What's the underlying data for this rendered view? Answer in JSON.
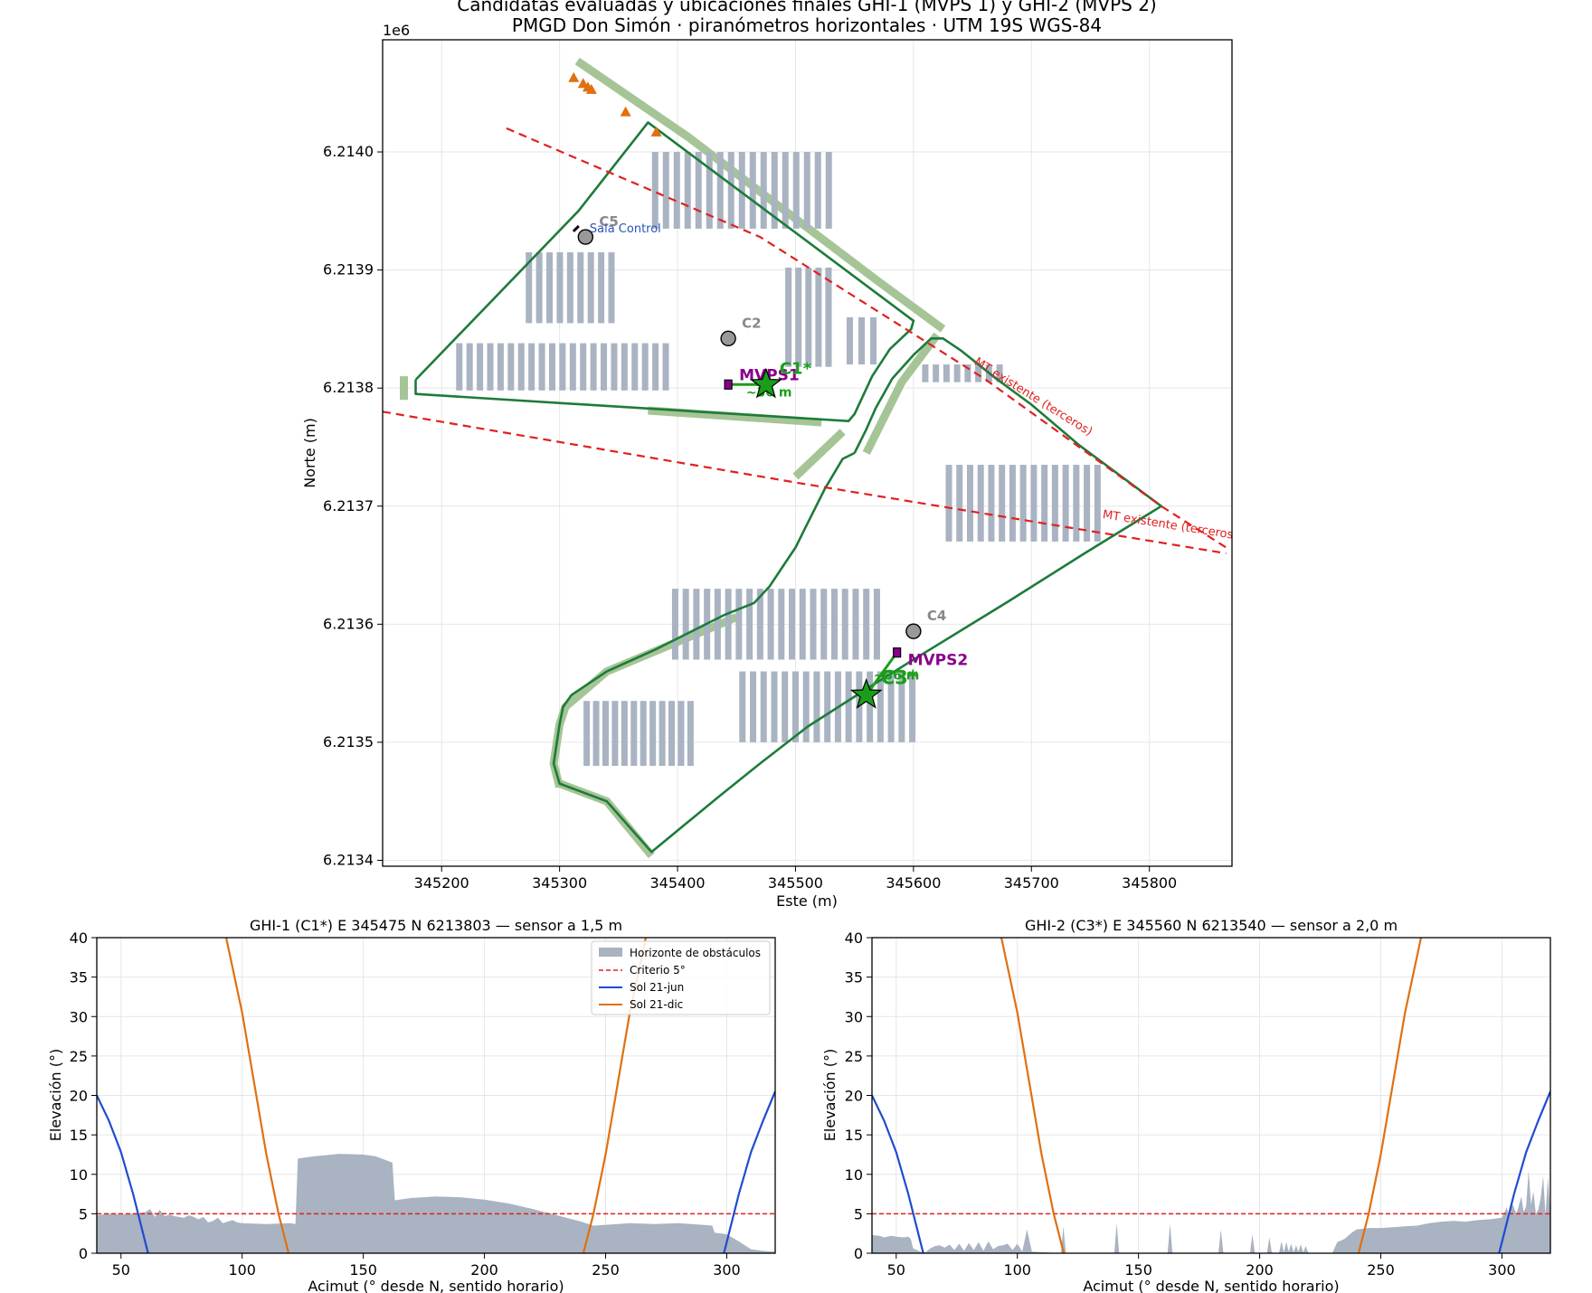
{
  "figure": {
    "title_line1": "Candidatas evaluadas y ubicaciones finales GHI-1 (MVPS 1) y GHI-2 (MVPS 2)",
    "title_line2": "PMGD Don Simón · piranómetros horizontales · UTM 19S WGS-84"
  },
  "chart_data": [
    {
      "type": "map",
      "xlabel": "Este (m)",
      "ylabel": "Norte (m)",
      "y_offset_label": "1e6",
      "xlim": [
        345150,
        345870
      ],
      "ylim": [
        6213395,
        6214095
      ],
      "xticks": [
        345200,
        345300,
        345400,
        345500,
        345600,
        345700,
        345800
      ],
      "yticks": [
        6213400,
        6213500,
        6213600,
        6213700,
        6213800,
        6213900,
        6214000
      ],
      "ytick_labels": [
        "6.2134",
        "6.2135",
        "6.2136",
        "6.2137",
        "6.2138",
        "6.2139",
        "6.2140"
      ],
      "grid": true,
      "colors": {
        "boundary": "#1e7b3a",
        "setback": "#9cbf8c",
        "pv_rows": "#a9b3c1",
        "mt_line": "#e02020",
        "candidate": "#999999",
        "selected": "#1a9e1a",
        "mvps": "#8b008b",
        "trees": "#e07010",
        "sala": "#2a52be"
      },
      "boundary_north": [
        [
          345178,
          6213807
        ],
        [
          345178,
          6213795
        ],
        [
          345545,
          6213772
        ],
        [
          345550,
          6213778
        ],
        [
          345565,
          6213810
        ],
        [
          345580,
          6213833
        ],
        [
          345598,
          6213850
        ],
        [
          345600,
          6213857
        ],
        [
          345375,
          6214025
        ],
        [
          345316,
          6213950
        ],
        [
          345178,
          6213807
        ]
      ],
      "boundary_south": [
        [
          345550,
          6213745
        ],
        [
          345560,
          6213765
        ],
        [
          345568,
          6213783
        ],
        [
          345582,
          6213808
        ],
        [
          345600,
          6213828
        ],
        [
          345615,
          6213842
        ],
        [
          345625,
          6213842
        ],
        [
          345640,
          6213832
        ],
        [
          345670,
          6213808
        ],
        [
          345700,
          6213786
        ],
        [
          345740,
          6213752
        ],
        [
          345810,
          6213700
        ],
        [
          345745,
          6213660
        ],
        [
          345680,
          6213619
        ],
        [
          345600,
          6213570
        ],
        [
          345560,
          6213545
        ],
        [
          345510,
          6213513
        ],
        [
          345470,
          6213482
        ],
        [
          345435,
          6213454
        ],
        [
          345378,
          6213407
        ],
        [
          345340,
          6213450
        ],
        [
          345300,
          6213465
        ],
        [
          345295,
          6213482
        ],
        [
          345300,
          6213515
        ],
        [
          345303,
          6213530
        ],
        [
          345310,
          6213540
        ],
        [
          345340,
          6213560
        ],
        [
          345380,
          6213578
        ],
        [
          345440,
          6213608
        ],
        [
          345465,
          6213618
        ],
        [
          345478,
          6213632
        ],
        [
          345490,
          6213650
        ],
        [
          345500,
          6213665
        ],
        [
          345510,
          6213685
        ],
        [
          345525,
          6213715
        ],
        [
          345540,
          6213740
        ],
        [
          345550,
          6213745
        ]
      ],
      "setback_strips": [
        [
          [
            345315,
            6214077
          ],
          [
            345410,
            6214012
          ],
          [
            345498,
            6213945
          ],
          [
            345568,
            6213892
          ],
          [
            345625,
            6213850
          ]
        ],
        [
          [
            345168,
            6213810
          ],
          [
            345168,
            6213790
          ]
        ],
        [
          [
            345375,
            6213781
          ],
          [
            345522,
            6213771
          ]
        ],
        [
          [
            345500,
            6213725
          ],
          [
            345540,
            6213763
          ]
        ],
        [
          [
            345560,
            6213745
          ],
          [
            345575,
            6213775
          ],
          [
            345590,
            6213805
          ],
          [
            345620,
            6213845
          ]
        ],
        [
          [
            345300,
            6213462
          ],
          [
            345295,
            6213482
          ],
          [
            345300,
            6213515
          ],
          [
            345305,
            6213530
          ],
          [
            345340,
            6213560
          ],
          [
            345400,
            6213585
          ],
          [
            345450,
            6213606
          ]
        ],
        [
          [
            345300,
            6213465
          ],
          [
            345340,
            6213450
          ],
          [
            345378,
            6213404
          ]
        ]
      ],
      "pv_rows": [
        {
          "x_start": 345215,
          "x_end": 345390,
          "step": 8.75,
          "y1": 6213798,
          "y2": 6213838
        },
        {
          "x_start": 345274,
          "x_end": 345344,
          "step": 8.75,
          "y1": 6213855,
          "y2": 6213915
        },
        {
          "x_start": 345381,
          "x_end": 345537,
          "step": 9.2,
          "y1": 6213935,
          "y2": 6214000
        },
        {
          "x_start": 345494,
          "x_end": 345536,
          "step": 8.5,
          "y1": 6213818,
          "y2": 6213902
        },
        {
          "x_start": 345546,
          "x_end": 345566,
          "step": 10,
          "y1": 6213820,
          "y2": 6213860
        },
        {
          "x_start": 345610,
          "x_end": 345675,
          "step": 9,
          "y1": 6213805,
          "y2": 6213820
        },
        {
          "x_start": 345630,
          "x_end": 345760,
          "step": 9,
          "y1": 6213670,
          "y2": 6213735
        },
        {
          "x_start": 345398,
          "x_end": 345570,
          "step": 9,
          "y1": 6213570,
          "y2": 6213630
        },
        {
          "x_start": 345455,
          "x_end": 345605,
          "step": 9,
          "y1": 6213500,
          "y2": 6213560
        },
        {
          "x_start": 345323,
          "x_end": 345415,
          "step": 8,
          "y1": 6213480,
          "y2": 6213535
        }
      ],
      "mt_lines": [
        {
          "points": [
            [
              345255,
              6214020
            ],
            [
              345470,
              6213928
            ],
            [
              345660,
              6213808
            ],
            [
              345810,
              6213700
            ],
            [
              345865,
              6213665
            ]
          ],
          "label": "MT existente (terceros)",
          "label_at": [
            345700,
            6213790
          ]
        },
        {
          "points": [
            [
              345150,
              6213780
            ],
            [
              345500,
              6213720
            ],
            [
              345865,
              6213660
            ]
          ],
          "label": "MT existente (terceros)",
          "label_at": [
            345760,
            6213690
          ]
        }
      ],
      "trees": [
        [
          345312,
          6214063
        ],
        [
          345320,
          6214058
        ],
        [
          345324,
          6214055
        ],
        [
          345327,
          6214053
        ],
        [
          345356,
          6214034
        ],
        [
          345382,
          6214017
        ]
      ],
      "sala_control": {
        "x": 345314,
        "y": 6213935,
        "label": "Sala Control"
      },
      "candidates": [
        {
          "id": "C5",
          "x": 345322,
          "y": 6213928
        },
        {
          "id": "C2",
          "x": 345443,
          "y": 6213842
        },
        {
          "id": "C4",
          "x": 345600,
          "y": 6213594
        }
      ],
      "selected": [
        {
          "id": "C1*",
          "x": 345475,
          "y": 6213803
        },
        {
          "id": "C3*",
          "x": 345560,
          "y": 6213540
        }
      ],
      "mvps": [
        {
          "id": "MVPS1",
          "x": 345443,
          "y": 6213803
        },
        {
          "id": "MVPS2",
          "x": 345586,
          "y": 6213576
        }
      ],
      "connection_labels": [
        "~30 m",
        "~36 m"
      ]
    },
    {
      "type": "area",
      "title": "GHI-1 (C1*)  E 345475  N 6213803 — sensor a 1,5 m",
      "xlabel": "Acimut (° desde N, sentido horario)",
      "ylabel": "Elevación (°)",
      "xlim": [
        40,
        320
      ],
      "ylim": [
        0,
        40
      ],
      "xticks": [
        50,
        100,
        150,
        200,
        250,
        300
      ],
      "yticks": [
        0,
        5,
        10,
        15,
        20,
        25,
        30,
        35,
        40
      ],
      "grid": true,
      "legend": "top-right",
      "legend_entries": [
        "Horizonte de obstáculos",
        "Criterio 5°",
        "Sol 21-jun",
        "Sol 21-dic"
      ],
      "criterion": 5,
      "horizon": {
        "x": [
          40,
          45,
          50,
          55,
          60,
          62,
          64,
          66,
          68,
          70,
          72,
          74,
          76,
          78,
          80,
          82,
          84,
          86,
          88,
          90,
          92,
          94,
          96,
          98,
          100,
          110,
          120,
          122,
          123,
          130,
          140,
          150,
          155,
          162,
          163,
          165,
          170,
          180,
          190,
          200,
          210,
          220,
          230,
          240,
          245,
          250,
          255,
          260,
          270,
          280,
          290,
          294,
          295,
          298,
          300,
          305,
          310,
          315,
          320
        ],
        "y": [
          4.8,
          5.0,
          4.9,
          5.0,
          5.2,
          5.6,
          4.6,
          5.5,
          4.7,
          4.9,
          4.7,
          4.6,
          4.5,
          4.8,
          4.6,
          4.3,
          4.6,
          3.9,
          4.1,
          4.5,
          3.8,
          4.0,
          4.2,
          3.9,
          3.8,
          3.7,
          3.8,
          3.7,
          12.0,
          12.3,
          12.6,
          12.5,
          12.3,
          11.5,
          6.7,
          6.8,
          7.0,
          7.2,
          7.1,
          6.8,
          6.3,
          5.6,
          4.8,
          4.0,
          3.5,
          3.6,
          3.7,
          3.8,
          3.7,
          3.8,
          3.6,
          3.5,
          2.6,
          2.5,
          2.4,
          1.5,
          0.5,
          0.3,
          0.2
        ]
      },
      "series": [
        {
          "name": "Sol 21-jun",
          "x": [
            40,
            45,
            50,
            55,
            60,
            62
          ],
          "y": [
            20.0,
            16.8,
            12.8,
            7.5,
            1.4,
            -1.0
          ]
        },
        {
          "name": "Sol 21-jun",
          "x": [
            298,
            300,
            305,
            310,
            315,
            320
          ],
          "y": [
            -1.0,
            1.4,
            7.5,
            12.8,
            16.8,
            20.5
          ]
        },
        {
          "name": "Sol 21-dic",
          "x": [
            92,
            100,
            110,
            115,
            120
          ],
          "y": [
            42,
            30.5,
            12.5,
            5.0,
            -1.0
          ]
        },
        {
          "name": "Sol 21-dic",
          "x": [
            240,
            245,
            250,
            260,
            268
          ],
          "y": [
            -1.0,
            5.0,
            12.5,
            30.5,
            42
          ]
        }
      ]
    },
    {
      "type": "area",
      "title": "GHI-2 (C3*)  E 345560  N 6213540 — sensor a 2,0 m",
      "xlabel": "Acimut (° desde N, sentido horario)",
      "ylabel": "Elevación (°)",
      "xlim": [
        40,
        320
      ],
      "ylim": [
        0,
        40
      ],
      "xticks": [
        50,
        100,
        150,
        200,
        250,
        300
      ],
      "yticks": [
        0,
        5,
        10,
        15,
        20,
        25,
        30,
        35,
        40
      ],
      "grid": true,
      "criterion": 5,
      "horizon": {
        "x": [
          40,
          43,
          45,
          48,
          50,
          53,
          55,
          56,
          57,
          60,
          62,
          64,
          66,
          68,
          70,
          72,
          74,
          76,
          78,
          80,
          82,
          84,
          86,
          88,
          90,
          92,
          94,
          96,
          98,
          100,
          102,
          104,
          106,
          118,
          119,
          120,
          121,
          140,
          141,
          142,
          143,
          162,
          163,
          164,
          165,
          183,
          184,
          185,
          186,
          196,
          197,
          198,
          199,
          203,
          204,
          205,
          206,
          208,
          209,
          210,
          211,
          212,
          213,
          214,
          215,
          216,
          217,
          218,
          219,
          220,
          221,
          230,
          232,
          235,
          238,
          240,
          245,
          250,
          255,
          260,
          265,
          270,
          275,
          280,
          285,
          290,
          295,
          300,
          302,
          303,
          304,
          306,
          308,
          309,
          310,
          311,
          312,
          313,
          314,
          315,
          316,
          317,
          318,
          319,
          320
        ],
        "y": [
          2.3,
          2.2,
          2.0,
          2.2,
          2.1,
          2.0,
          2.1,
          1.8,
          0.6,
          0.2,
          0.1,
          0.6,
          0.9,
          1.0,
          0.7,
          1.1,
          0.4,
          1.2,
          0.3,
          1.3,
          0.4,
          1.4,
          0.3,
          1.5,
          0.5,
          0.9,
          1.0,
          1.2,
          0.4,
          1.2,
          0.2,
          3.0,
          0.2,
          0.0,
          3.4,
          0.1,
          0.0,
          0.0,
          3.8,
          0.1,
          0.0,
          0.0,
          3.7,
          0.1,
          0.0,
          0.0,
          3.0,
          0.1,
          0.0,
          0.0,
          2.4,
          0.1,
          0.0,
          0.0,
          2.0,
          0.1,
          0.0,
          0.0,
          1.5,
          0.1,
          1.4,
          0.2,
          1.2,
          0.1,
          1.0,
          0.2,
          1.1,
          0.1,
          0.9,
          0.1,
          0.0,
          0.0,
          1.4,
          1.8,
          2.6,
          3.0,
          3.2,
          3.2,
          3.3,
          3.4,
          3.5,
          3.8,
          4.0,
          4.1,
          4.0,
          4.2,
          4.3,
          4.5,
          5.8,
          4.5,
          6.5,
          5.0,
          7.2,
          5.2,
          6.0,
          10.5,
          6.2,
          7.8,
          5.0,
          5.5,
          7.0,
          9.8,
          4.8,
          9.6,
          5.0
        ]
      },
      "series": [
        {
          "name": "Sol 21-jun",
          "x": [
            40,
            45,
            50,
            55,
            60,
            62
          ],
          "y": [
            20.0,
            16.8,
            12.8,
            7.5,
            1.4,
            -1.0
          ]
        },
        {
          "name": "Sol 21-jun",
          "x": [
            298,
            300,
            305,
            310,
            315,
            320
          ],
          "y": [
            -1.0,
            1.4,
            7.5,
            12.8,
            16.8,
            20.5
          ]
        },
        {
          "name": "Sol 21-dic",
          "x": [
            92,
            100,
            110,
            115,
            120
          ],
          "y": [
            42,
            30.5,
            12.5,
            5.0,
            -1.0
          ]
        },
        {
          "name": "Sol 21-dic",
          "x": [
            240,
            245,
            250,
            260,
            268
          ],
          "y": [
            -1.0,
            5.0,
            12.5,
            30.5,
            42
          ]
        }
      ]
    }
  ]
}
